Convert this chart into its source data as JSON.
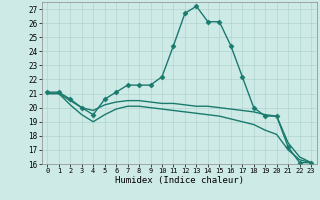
{
  "xlabel": "Humidex (Indice chaleur)",
  "background_color": "#ceeae6",
  "grid_color": "#b0d4cf",
  "line_color": "#1a7a6e",
  "xlim": [
    -0.5,
    23.5
  ],
  "ylim": [
    16,
    27.5
  ],
  "yticks": [
    16,
    17,
    18,
    19,
    20,
    21,
    22,
    23,
    24,
    25,
    26,
    27
  ],
  "xticks": [
    0,
    1,
    2,
    3,
    4,
    5,
    6,
    7,
    8,
    9,
    10,
    11,
    12,
    13,
    14,
    15,
    16,
    17,
    18,
    19,
    20,
    21,
    22,
    23
  ],
  "series": [
    {
      "x": [
        0,
        1,
        2,
        3,
        4,
        5,
        6,
        7,
        8,
        9,
        10,
        11,
        12,
        13,
        14,
        15,
        16,
        17,
        18,
        19,
        20,
        21,
        22,
        23
      ],
      "y": [
        21.1,
        21.1,
        20.6,
        20.0,
        19.5,
        20.6,
        21.1,
        21.6,
        21.6,
        21.6,
        22.2,
        24.4,
        26.7,
        27.2,
        26.1,
        26.1,
        24.4,
        22.2,
        20.0,
        19.4,
        19.4,
        17.2,
        16.1,
        16.1
      ],
      "marker": "D",
      "markersize": 2.5,
      "linewidth": 1.0,
      "has_marker": true
    },
    {
      "x": [
        0,
        1,
        2,
        3,
        4,
        5,
        6,
        7,
        8,
        9,
        10,
        11,
        12,
        13,
        14,
        15,
        16,
        17,
        18,
        19,
        20,
        21,
        22,
        23
      ],
      "y": [
        21.0,
        21.0,
        20.5,
        20.0,
        19.8,
        20.2,
        20.4,
        20.5,
        20.5,
        20.4,
        20.3,
        20.3,
        20.2,
        20.1,
        20.1,
        20.0,
        19.9,
        19.8,
        19.7,
        19.5,
        19.4,
        17.5,
        16.5,
        16.1
      ],
      "marker": null,
      "markersize": 0,
      "linewidth": 1.0,
      "has_marker": false
    },
    {
      "x": [
        0,
        1,
        2,
        3,
        4,
        5,
        6,
        7,
        8,
        9,
        10,
        11,
        12,
        13,
        14,
        15,
        16,
        17,
        18,
        19,
        20,
        21,
        22,
        23
      ],
      "y": [
        21.0,
        21.0,
        20.2,
        19.5,
        19.0,
        19.5,
        19.9,
        20.1,
        20.1,
        20.0,
        19.9,
        19.8,
        19.7,
        19.6,
        19.5,
        19.4,
        19.2,
        19.0,
        18.8,
        18.4,
        18.1,
        17.0,
        16.3,
        16.1
      ],
      "marker": null,
      "markersize": 0,
      "linewidth": 1.0,
      "has_marker": false
    }
  ]
}
